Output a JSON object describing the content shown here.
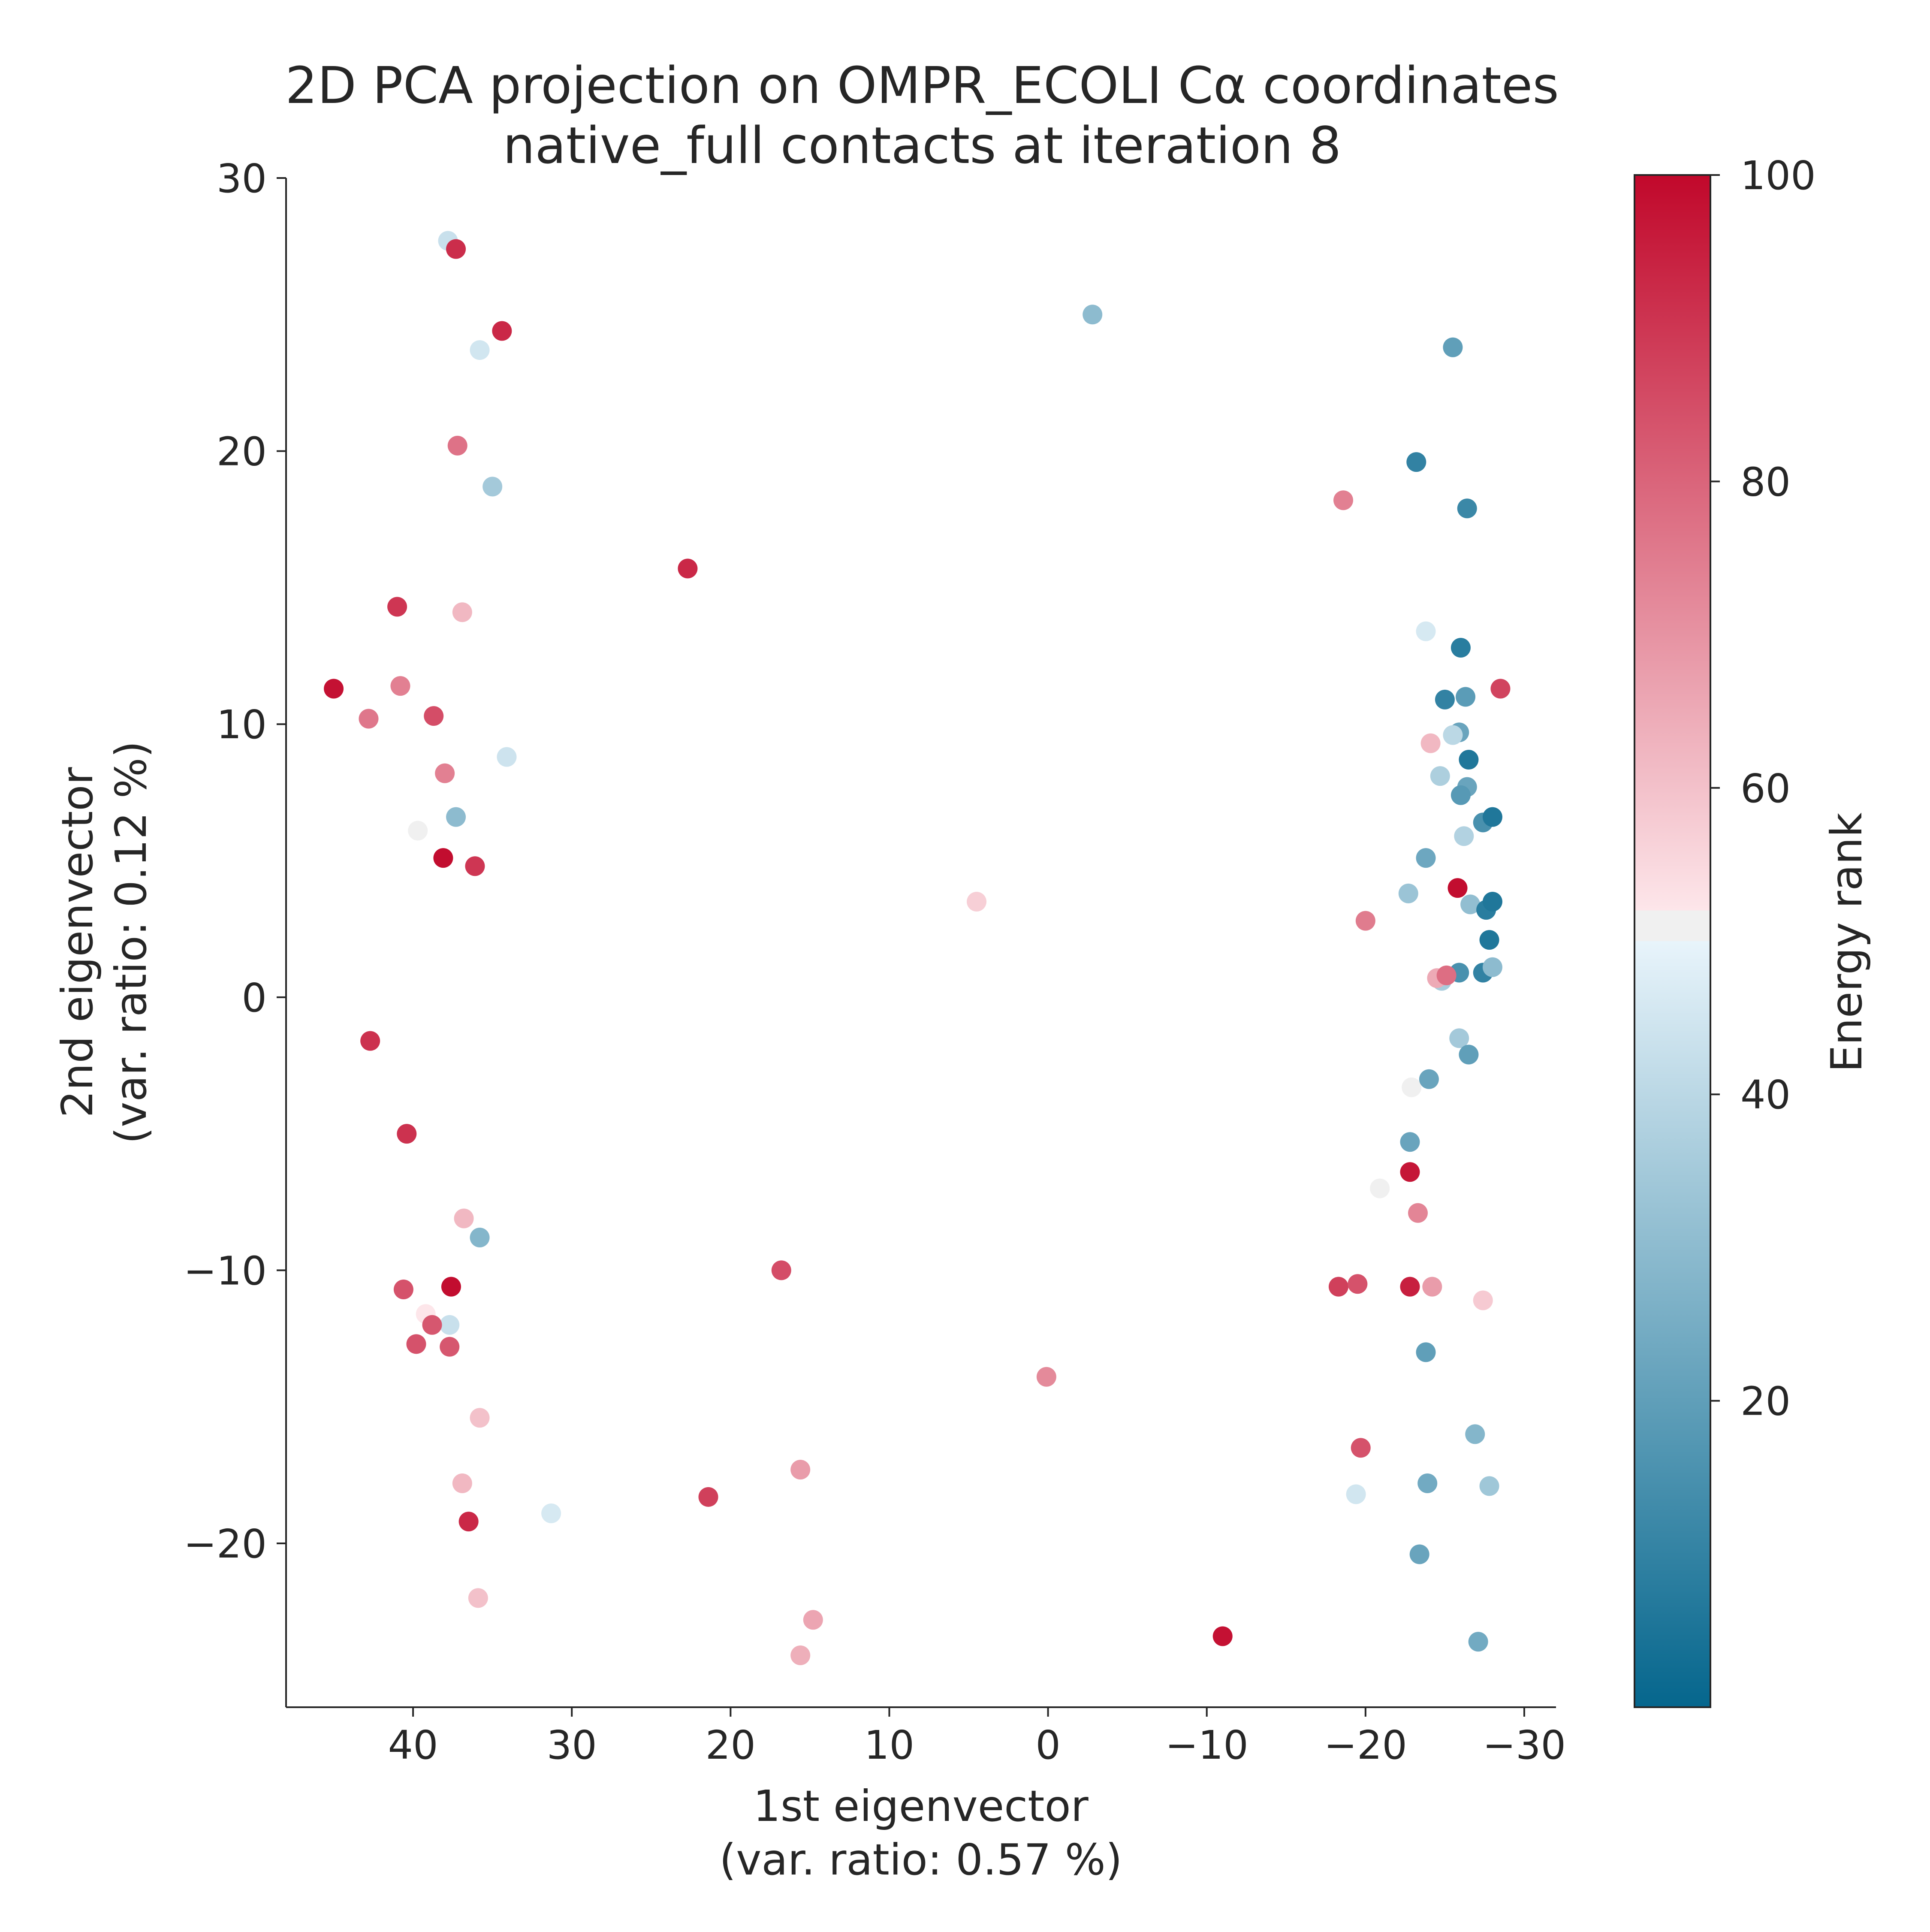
{
  "chart_data": {
    "type": "scatter",
    "title": "2D PCA projection on OMPR_ECOLI Cα coordinates",
    "subtitle": "native_full contacts at iteration 8",
    "xlabel": "1st eigenvector",
    "xlabel_sub": "(var. ratio: 0.57 %)",
    "ylabel": "2nd eigenvector",
    "ylabel_sub": "(var. ratio: 0.12 %)",
    "xlim": [
      48,
      -32
    ],
    "ylim": [
      -26,
      30
    ],
    "x_inverted": true,
    "xticks": [
      40,
      30,
      20,
      10,
      0,
      -10,
      -20,
      -30
    ],
    "xtick_labels": [
      "40",
      "30",
      "20",
      "10",
      "0",
      "−10",
      "−20",
      "−30"
    ],
    "yticks": [
      30,
      20,
      10,
      0,
      -10,
      -20
    ],
    "ytick_labels": [
      "30",
      "20",
      "10",
      "0",
      "−10",
      "−20"
    ],
    "grid": false,
    "colorbar": {
      "label": "Energy rank",
      "range": [
        0,
        100
      ],
      "ticks": [
        20,
        40,
        60,
        80,
        100
      ],
      "tick_labels": [
        "20",
        "40",
        "60",
        "80",
        "100"
      ],
      "colormap": [
        "#053061",
        "#2166ac",
        "#4393c3",
        "#92c5de",
        "#d1e5f0",
        "#f0f0f0",
        "#fddbc7",
        "#f4a582",
        "#d6604d",
        "#b2182b",
        "#67001f"
      ],
      "low_color": "#05668d",
      "mid_color": "#f0f0f0",
      "high_color": "#c1082b"
    },
    "points": [
      {
        "x": 37.8,
        "y": 27.7,
        "rank": 43
      },
      {
        "x": 37.3,
        "y": 27.4,
        "rank": 92
      },
      {
        "x": 34.4,
        "y": 24.4,
        "rank": 93
      },
      {
        "x": 35.8,
        "y": 23.7,
        "rank": 45
      },
      {
        "x": 37.2,
        "y": 20.2,
        "rank": 77
      },
      {
        "x": 35.0,
        "y": 18.7,
        "rank": 35
      },
      {
        "x": 41.0,
        "y": 14.3,
        "rank": 90
      },
      {
        "x": 36.9,
        "y": 14.1,
        "rank": 62
      },
      {
        "x": 45.0,
        "y": 11.3,
        "rank": 98
      },
      {
        "x": 40.8,
        "y": 11.4,
        "rank": 74
      },
      {
        "x": 42.8,
        "y": 10.2,
        "rank": 76
      },
      {
        "x": 38.7,
        "y": 10.3,
        "rank": 85
      },
      {
        "x": 38.0,
        "y": 8.2,
        "rank": 74
      },
      {
        "x": 34.1,
        "y": 8.8,
        "rank": 44
      },
      {
        "x": 37.3,
        "y": 6.6,
        "rank": 30
      },
      {
        "x": 39.7,
        "y": 6.1,
        "rank": 51
      },
      {
        "x": 38.1,
        "y": 5.1,
        "rank": 99
      },
      {
        "x": 36.1,
        "y": 4.8,
        "rank": 90
      },
      {
        "x": 42.7,
        "y": -1.6,
        "rank": 91
      },
      {
        "x": 40.4,
        "y": -5.0,
        "rank": 91
      },
      {
        "x": 36.8,
        "y": -8.1,
        "rank": 62
      },
      {
        "x": 35.8,
        "y": -8.8,
        "rank": 28
      },
      {
        "x": 40.6,
        "y": -10.7,
        "rank": 84
      },
      {
        "x": 37.6,
        "y": -10.6,
        "rank": 99
      },
      {
        "x": 39.2,
        "y": -11.6,
        "rank": 52
      },
      {
        "x": 37.7,
        "y": -12.0,
        "rank": 43
      },
      {
        "x": 38.8,
        "y": -12.0,
        "rank": 83
      },
      {
        "x": 39.8,
        "y": -12.7,
        "rank": 84
      },
      {
        "x": 37.7,
        "y": -12.8,
        "rank": 83
      },
      {
        "x": 35.8,
        "y": -15.4,
        "rank": 60
      },
      {
        "x": 36.9,
        "y": -17.8,
        "rank": 62
      },
      {
        "x": 36.5,
        "y": -19.2,
        "rank": 93
      },
      {
        "x": 31.3,
        "y": -18.9,
        "rank": 46
      },
      {
        "x": 35.9,
        "y": -22.0,
        "rank": 60
      },
      {
        "x": 22.7,
        "y": 15.7,
        "rank": 93
      },
      {
        "x": 21.4,
        "y": -18.3,
        "rank": 88
      },
      {
        "x": 16.8,
        "y": -10.0,
        "rank": 85
      },
      {
        "x": 15.6,
        "y": -17.3,
        "rank": 68
      },
      {
        "x": 14.8,
        "y": -22.8,
        "rank": 66
      },
      {
        "x": 15.6,
        "y": -24.1,
        "rank": 64
      },
      {
        "x": 4.5,
        "y": 3.5,
        "rank": 57
      },
      {
        "x": 0.1,
        "y": -13.9,
        "rank": 72
      },
      {
        "x": -11.0,
        "y": -23.4,
        "rank": 98
      },
      {
        "x": -2.8,
        "y": 25.0,
        "rank": 30
      },
      {
        "x": -25.5,
        "y": 23.8,
        "rank": 20
      },
      {
        "x": -23.2,
        "y": 19.6,
        "rank": 10
      },
      {
        "x": -26.4,
        "y": 17.9,
        "rank": 12
      },
      {
        "x": -18.6,
        "y": 18.2,
        "rank": 74
      },
      {
        "x": -23.8,
        "y": 13.4,
        "rank": 46
      },
      {
        "x": -26.0,
        "y": 12.8,
        "rank": 8
      },
      {
        "x": -28.5,
        "y": 11.3,
        "rank": 87
      },
      {
        "x": -25.0,
        "y": 10.9,
        "rank": 10
      },
      {
        "x": -26.3,
        "y": 11.0,
        "rank": 19
      },
      {
        "x": -25.9,
        "y": 9.7,
        "rank": 22
      },
      {
        "x": -25.5,
        "y": 9.6,
        "rank": 40
      },
      {
        "x": -24.1,
        "y": 9.3,
        "rank": 62
      },
      {
        "x": -26.5,
        "y": 8.7,
        "rank": 6
      },
      {
        "x": -24.7,
        "y": 8.1,
        "rank": 37
      },
      {
        "x": -26.4,
        "y": 7.7,
        "rank": 22
      },
      {
        "x": -26.0,
        "y": 7.4,
        "rank": 18
      },
      {
        "x": -27.4,
        "y": 6.4,
        "rank": 15
      },
      {
        "x": -28.0,
        "y": 6.6,
        "rank": 6
      },
      {
        "x": -26.2,
        "y": 5.9,
        "rank": 38
      },
      {
        "x": -23.8,
        "y": 5.1,
        "rank": 23
      },
      {
        "x": -25.8,
        "y": 4.0,
        "rank": 99
      },
      {
        "x": -22.7,
        "y": 3.8,
        "rank": 33
      },
      {
        "x": -26.6,
        "y": 3.4,
        "rank": 31
      },
      {
        "x": -27.6,
        "y": 3.2,
        "rank": 8
      },
      {
        "x": -28.0,
        "y": 3.5,
        "rank": 6
      },
      {
        "x": -20.0,
        "y": 2.8,
        "rank": 75
      },
      {
        "x": -27.8,
        "y": 2.1,
        "rank": 6
      },
      {
        "x": -24.8,
        "y": 0.6,
        "rank": 36
      },
      {
        "x": -24.5,
        "y": 0.7,
        "rank": 65
      },
      {
        "x": -25.9,
        "y": 0.9,
        "rank": 15
      },
      {
        "x": -25.1,
        "y": 0.8,
        "rank": 78
      },
      {
        "x": -27.4,
        "y": 0.9,
        "rank": 10
      },
      {
        "x": -28.0,
        "y": 1.1,
        "rank": 30
      },
      {
        "x": -25.9,
        "y": -1.5,
        "rank": 35
      },
      {
        "x": -26.5,
        "y": -2.1,
        "rank": 20
      },
      {
        "x": -22.9,
        "y": -3.3,
        "rank": 51
      },
      {
        "x": -24.0,
        "y": -3.0,
        "rank": 22
      },
      {
        "x": -22.8,
        "y": -5.3,
        "rank": 22
      },
      {
        "x": -20.9,
        "y": -7.0,
        "rank": 51
      },
      {
        "x": -22.8,
        "y": -6.4,
        "rank": 97
      },
      {
        "x": -23.3,
        "y": -7.9,
        "rank": 73
      },
      {
        "x": -18.3,
        "y": -10.6,
        "rank": 88
      },
      {
        "x": -19.5,
        "y": -10.5,
        "rank": 84
      },
      {
        "x": -22.8,
        "y": -10.6,
        "rank": 95
      },
      {
        "x": -24.2,
        "y": -10.6,
        "rank": 68
      },
      {
        "x": -27.4,
        "y": -11.1,
        "rank": 58
      },
      {
        "x": -23.8,
        "y": -13.0,
        "rank": 20
      },
      {
        "x": -19.7,
        "y": -16.5,
        "rank": 84
      },
      {
        "x": -26.9,
        "y": -16.0,
        "rank": 28
      },
      {
        "x": -23.9,
        "y": -17.8,
        "rank": 24
      },
      {
        "x": -27.8,
        "y": -17.9,
        "rank": 34
      },
      {
        "x": -19.4,
        "y": -18.2,
        "rank": 45
      },
      {
        "x": -23.4,
        "y": -20.4,
        "rank": 22
      },
      {
        "x": -27.1,
        "y": -23.6,
        "rank": 24
      }
    ]
  }
}
